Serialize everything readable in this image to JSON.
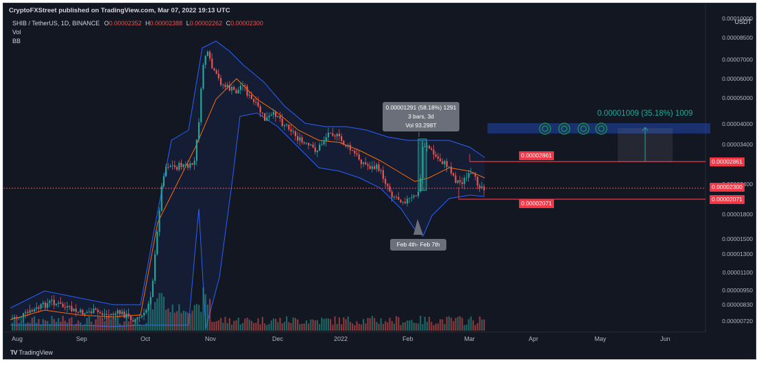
{
  "header": {
    "published": "CryptoFXStreet published on TradingView.com, Mar 07, 2022 19:13 UTC",
    "symbol": "SHIB / TetherUS, 1D, BINANCE",
    "o_label": "O",
    "o_val": "0.00002352",
    "h_label": "H",
    "h_val": "0.00002388",
    "l_label": "L",
    "l_val": "0.00002262",
    "c_label": "C",
    "c_val": "0.00002300",
    "indicator_vol": "Vol",
    "indicator_bb": "BB"
  },
  "price_axis": {
    "currency": "USDT",
    "ticks": [
      "0.00010000",
      "0.00008500",
      "0.00007000",
      "0.00006000",
      "0.00005000",
      "0.00004000",
      "0.00003400",
      "0.00002400",
      "0.00001800",
      "0.00001500",
      "0.00001300",
      "0.00001100",
      "0.00000950",
      "0.00000830",
      "0.00000720"
    ]
  },
  "time_axis": {
    "labels": [
      "Aug",
      "Sep",
      "Oct",
      "Nov",
      "Dec",
      "2022",
      "Feb",
      "Mar",
      "Apr",
      "May",
      "Jun"
    ]
  },
  "annotations": {
    "tooltip_line1": "0.00001291 (58.18%) 1291",
    "tooltip_line2": "3 bars, 3d",
    "tooltip_line3": "Vol 93.298T",
    "callout": "Feb 4th- Feb 7th",
    "target_measure": "0.00001009 (35.18%) 1009",
    "resistance": "0.00002861",
    "support": "0.00002071"
  },
  "axis_tags": {
    "resistance": "0.00002861",
    "last_price": "0.00002300",
    "support": "0.00002071"
  },
  "colors": {
    "background": "#131722",
    "up": "#26a69a",
    "down": "#ef5350",
    "bb_band": "#2962ff",
    "bb_basis": "#ff6d00",
    "tag": "#f23645"
  },
  "footer": {
    "brand": "TradingView",
    "logo_text": "TV"
  }
}
